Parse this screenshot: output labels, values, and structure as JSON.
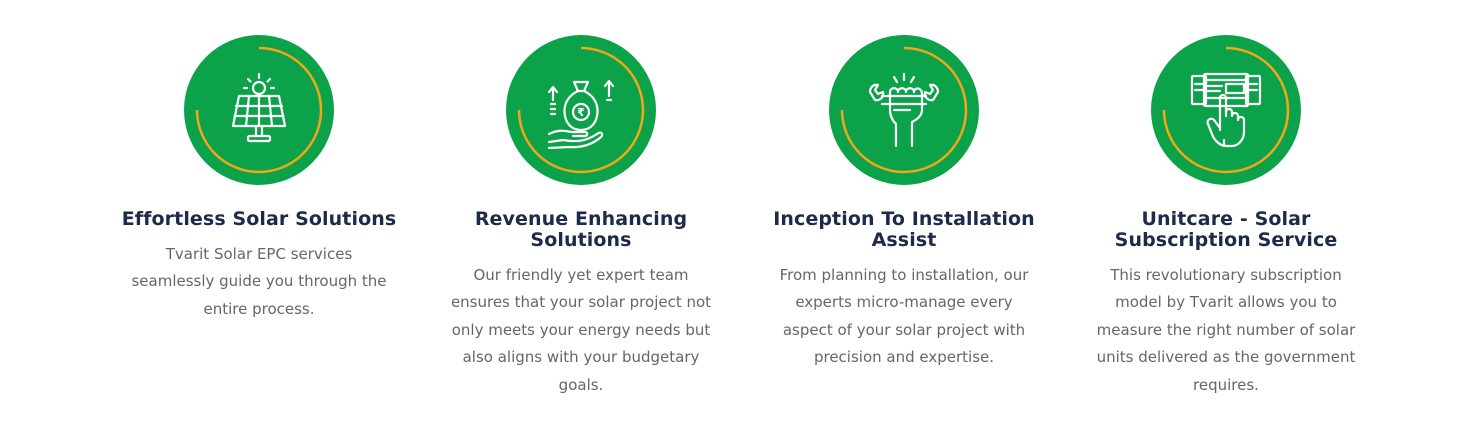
{
  "colors": {
    "badge_green": "#0ba24a",
    "ring_orange": "#f2a61a",
    "title_navy": "#1e2a4a",
    "body_gray": "#666666"
  },
  "features": [
    {
      "icon": "solar-panel-icon",
      "title": "Effortless Solar Solutions",
      "description": "Tvarit Solar EPC services seamlessly guide you through the entire process."
    },
    {
      "icon": "money-bag-growth-icon",
      "title": "Revenue Enhancing Solutions",
      "description": "Our friendly yet expert team ensures that your solar project not only meets your energy needs but also aligns with your budgetary goals."
    },
    {
      "icon": "hand-wrench-icon",
      "title": "Inception To Installation Assist",
      "description": "From planning to installation, our experts micro-manage every aspect of your solar project with precision and expertise."
    },
    {
      "icon": "hand-tap-dashboard-icon",
      "title": "Unitcare - Solar Subscription Service",
      "description": "This revolutionary subscription model by Tvarit allows you to measure the right number of solar units delivered as the government requires."
    }
  ]
}
